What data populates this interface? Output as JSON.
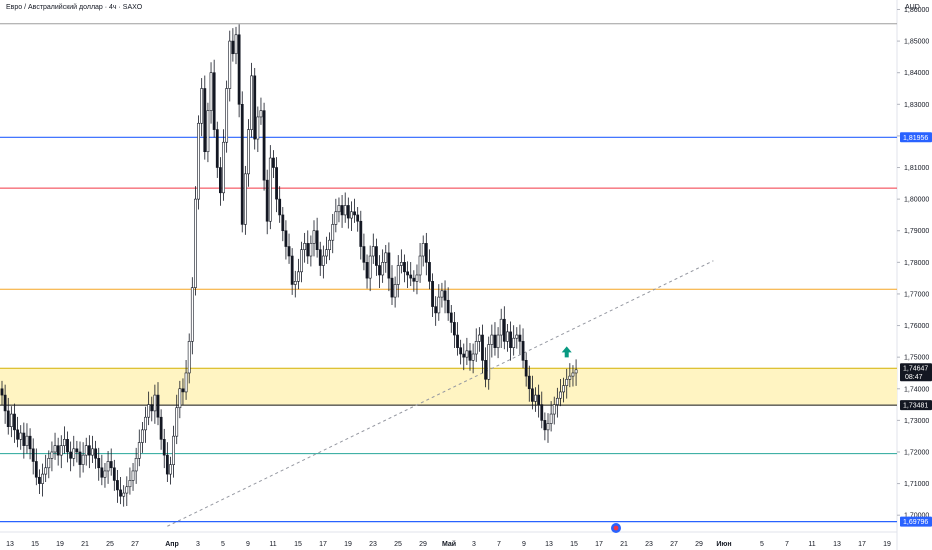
{
  "header": {
    "title": "Евро / Австралийский доллар · 4ч · SAXO",
    "currency": "AUD"
  },
  "chart_data": {
    "type": "candlestick",
    "ylim": [
      1.695,
      1.863
    ],
    "y_ticks": [
      "1,70000",
      "1,71000",
      "1,72000",
      "1,73000",
      "1,74000",
      "1,75000",
      "1,76000",
      "1,77000",
      "1,78000",
      "1,79000",
      "1,80000",
      "1,81000",
      "1,82000",
      "1,83000",
      "1,84000",
      "1,85000",
      "1,86000"
    ],
    "x_ticks": [
      {
        "label": "13",
        "bold": false
      },
      {
        "label": "15",
        "bold": false
      },
      {
        "label": "19",
        "bold": false
      },
      {
        "label": "21",
        "bold": false
      },
      {
        "label": "25",
        "bold": false
      },
      {
        "label": "27",
        "bold": false
      },
      {
        "label": "Апр",
        "bold": true
      },
      {
        "label": "3",
        "bold": false
      },
      {
        "label": "5",
        "bold": false
      },
      {
        "label": "9",
        "bold": false
      },
      {
        "label": "11",
        "bold": false
      },
      {
        "label": "15",
        "bold": false
      },
      {
        "label": "17",
        "bold": false
      },
      {
        "label": "19",
        "bold": false
      },
      {
        "label": "23",
        "bold": false
      },
      {
        "label": "25",
        "bold": false
      },
      {
        "label": "29",
        "bold": false
      },
      {
        "label": "Май",
        "bold": true
      },
      {
        "label": "3",
        "bold": false
      },
      {
        "label": "7",
        "bold": false
      },
      {
        "label": "9",
        "bold": false
      },
      {
        "label": "13",
        "bold": false
      },
      {
        "label": "15",
        "bold": false
      },
      {
        "label": "17",
        "bold": false
      },
      {
        "label": "21",
        "bold": false
      },
      {
        "label": "23",
        "bold": false
      },
      {
        "label": "27",
        "bold": false
      },
      {
        "label": "29",
        "bold": false
      },
      {
        "label": "Июн",
        "bold": true
      },
      {
        "label": "5",
        "bold": false
      },
      {
        "label": "7",
        "bold": false
      },
      {
        "label": "11",
        "bold": false
      },
      {
        "label": "13",
        "bold": false
      },
      {
        "label": "17",
        "bold": false
      },
      {
        "label": "19",
        "bold": false
      }
    ],
    "horizontal_levels": [
      {
        "price": 1.8555,
        "color": "#9e9e9e",
        "label": ""
      },
      {
        "price": 1.81956,
        "color": "#2962ff",
        "label": "1,81956"
      },
      {
        "price": 1.8035,
        "color": "#f23645",
        "label": ""
      },
      {
        "price": 1.7715,
        "color": "#f5a623",
        "label": ""
      },
      {
        "price": 1.7195,
        "color": "#26a69a",
        "label": ""
      },
      {
        "price": 1.73481,
        "color": "#131722",
        "label": "1,73481"
      },
      {
        "price": 1.69796,
        "color": "#2962ff",
        "label": "1,69796"
      }
    ],
    "zone": {
      "from": 1.7346,
      "to": 1.7465,
      "color": "#fff4c2"
    },
    "current_price": {
      "value": "1,74647",
      "countdown": "08:47",
      "price": 1.7465
    },
    "trendline": {
      "from": {
        "date_index": 53,
        "price": 1.6965
      },
      "to": {
        "date_index": 228,
        "price": 1.7805
      }
    },
    "arrow_marker": {
      "direction": "up",
      "color": "#089981",
      "price": 1.7515
    },
    "candles_close": [
      1.738,
      1.733,
      1.728,
      1.732,
      1.727,
      1.724,
      1.726,
      1.722,
      1.725,
      1.721,
      1.717,
      1.712,
      1.71,
      1.713,
      1.715,
      1.718,
      1.72,
      1.722,
      1.719,
      1.722,
      1.724,
      1.72,
      1.718,
      1.721,
      1.72,
      1.716,
      1.719,
      1.722,
      1.719,
      1.721,
      1.718,
      1.715,
      1.712,
      1.714,
      1.717,
      1.715,
      1.711,
      1.708,
      1.706,
      1.707,
      1.709,
      1.711,
      1.714,
      1.718,
      1.723,
      1.727,
      1.731,
      1.735,
      1.733,
      1.738,
      1.731,
      1.724,
      1.719,
      1.713,
      1.716,
      1.725,
      1.734,
      1.74,
      1.739,
      1.745,
      1.755,
      1.772,
      1.8,
      1.824,
      1.835,
      1.815,
      1.828,
      1.84,
      1.822,
      1.81,
      1.802,
      1.818,
      1.835,
      1.85,
      1.846,
      1.852,
      1.83,
      1.792,
      1.808,
      1.822,
      1.839,
      1.819,
      1.826,
      1.828,
      1.806,
      1.793,
      1.813,
      1.81,
      1.8,
      1.795,
      1.79,
      1.785,
      1.782,
      1.773,
      1.774,
      1.777,
      1.784,
      1.786,
      1.782,
      1.786,
      1.79,
      1.784,
      1.779,
      1.782,
      1.784,
      1.787,
      1.792,
      1.796,
      1.798,
      1.795,
      1.798,
      1.794,
      1.796,
      1.795,
      1.793,
      1.785,
      1.78,
      1.775,
      1.782,
      1.785,
      1.779,
      1.776,
      1.78,
      1.783,
      1.775,
      1.769,
      1.773,
      1.779,
      1.78,
      1.777,
      1.776,
      1.775,
      1.774,
      1.776,
      1.782,
      1.786,
      1.78,
      1.774,
      1.766,
      1.764,
      1.769,
      1.771,
      1.768,
      1.764,
      1.761,
      1.757,
      1.753,
      1.751,
      1.75,
      1.752,
      1.749,
      1.751,
      1.755,
      1.757,
      1.749,
      1.743,
      1.754,
      1.757,
      1.753,
      1.757,
      1.762,
      1.755,
      1.758,
      1.753,
      1.756,
      1.757,
      1.755,
      1.749,
      1.744,
      1.74,
      1.736,
      1.738,
      1.735,
      1.73,
      1.727,
      1.729,
      1.732,
      1.735,
      1.737,
      1.739,
      1.741,
      1.743,
      1.744,
      1.745,
      1.746
    ]
  }
}
